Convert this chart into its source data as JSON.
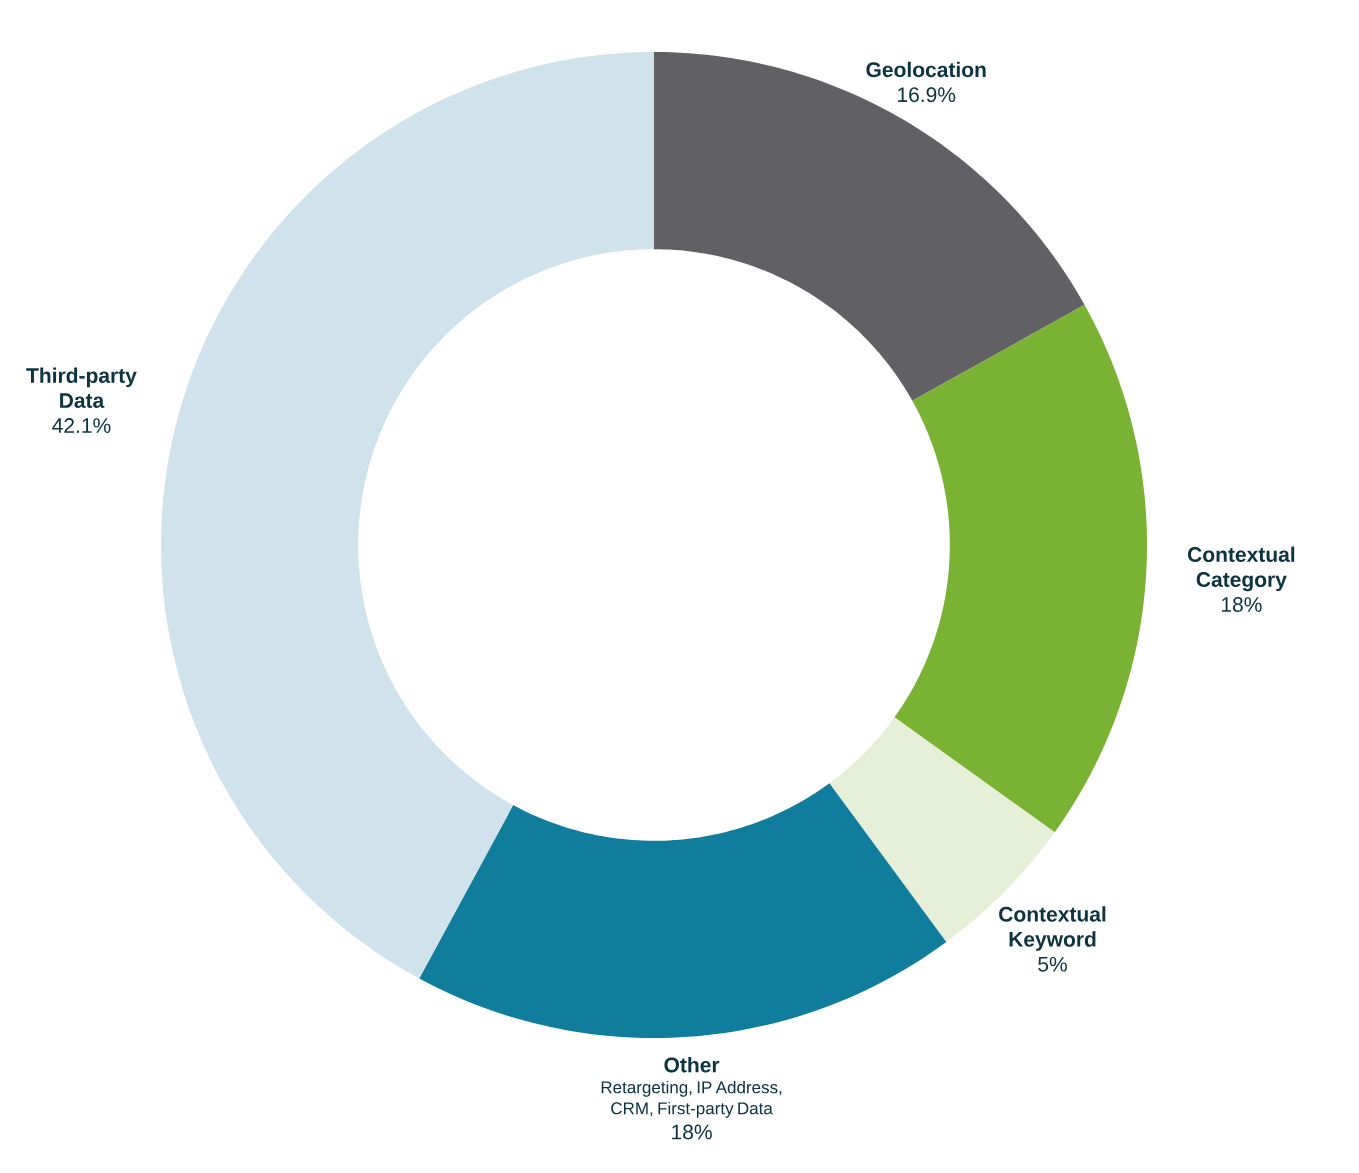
{
  "chart_data": {
    "type": "donut",
    "categories": [
      "Geolocation",
      "Contextual Category",
      "Contextual Keyword",
      "Other",
      "Third-party Data"
    ],
    "values": [
      16.9,
      18,
      5,
      18,
      42.1
    ],
    "value_labels": [
      "16.9%",
      "18%",
      "5%",
      "18%",
      "42.1%"
    ],
    "colors": [
      "#616065",
      "#7ab333",
      "#e6f0d8",
      "#0f7d9b",
      "#d0e3ec"
    ],
    "annotations": [
      {
        "text": "Retargeting, IP Address, CRM, First-party Data",
        "x": "Other"
      }
    ]
  }
}
